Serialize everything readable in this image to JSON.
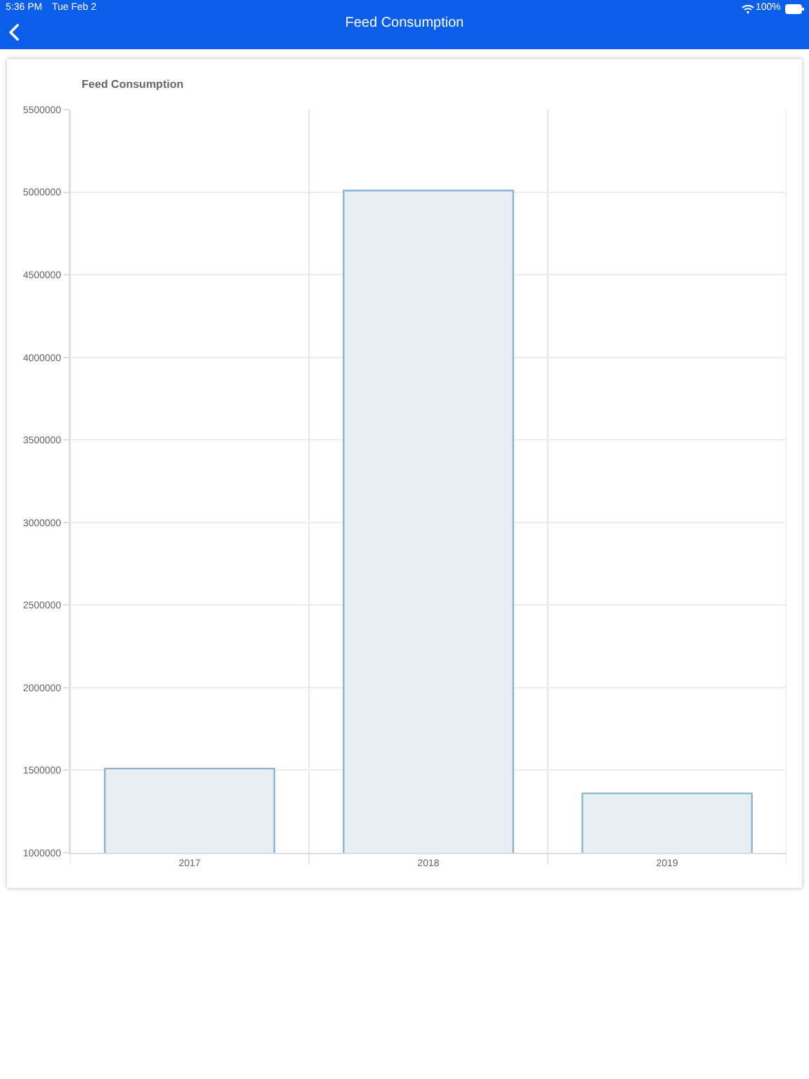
{
  "chart_data": {
    "type": "bar",
    "title": "Feed Consumption",
    "annotations": [
      "5:36 PM",
      "Tue Feb 2",
      "100%",
      "Feed Consumption"
    ],
    "categories": [
      "2017",
      "2018",
      "2019"
    ],
    "values": [
      1510000,
      5010000,
      1360000
    ],
    "color": "#e8eff3",
    "ylim": [
      1000000,
      5500000
    ],
    "yticks": [
      1000000,
      1500000,
      2000000,
      2500000,
      3000000,
      3500000,
      4000000,
      4500000,
      5000000,
      5500000
    ],
    "grid": true,
    "legend": false
  }
}
